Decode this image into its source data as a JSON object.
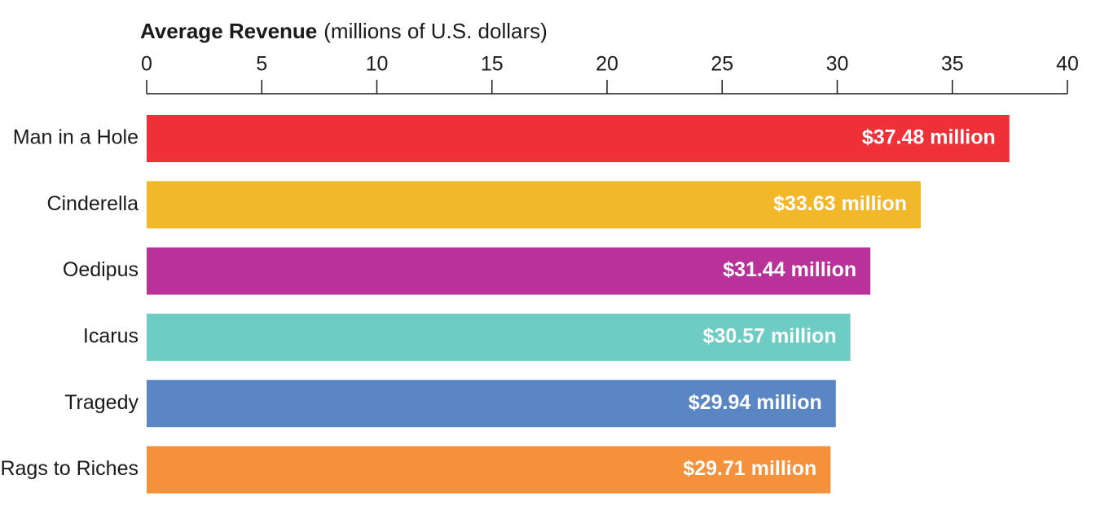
{
  "chart_data": {
    "type": "hbar",
    "title": "Average Revenue",
    "subtitle": "(millions of U.S. dollars)",
    "categories": [
      "Man in a Hole",
      "Cinderella",
      "Oedipus",
      "Icarus",
      "Tragedy",
      "Rags to Riches"
    ],
    "values": [
      37.48,
      33.63,
      31.44,
      30.57,
      29.94,
      29.71
    ],
    "value_labels": [
      "$37.48 million",
      "$33.63 million",
      "$31.44 million",
      "$30.57 million",
      "$29.94 million",
      "$29.71 million"
    ],
    "colors": [
      "#ee3139",
      "#f2b829",
      "#b8329a",
      "#6dccc4",
      "#5b86c4",
      "#f4913a"
    ],
    "xlim": [
      0,
      40
    ],
    "xticks": [
      0,
      5,
      10,
      15,
      20,
      25,
      30,
      35,
      40
    ]
  }
}
